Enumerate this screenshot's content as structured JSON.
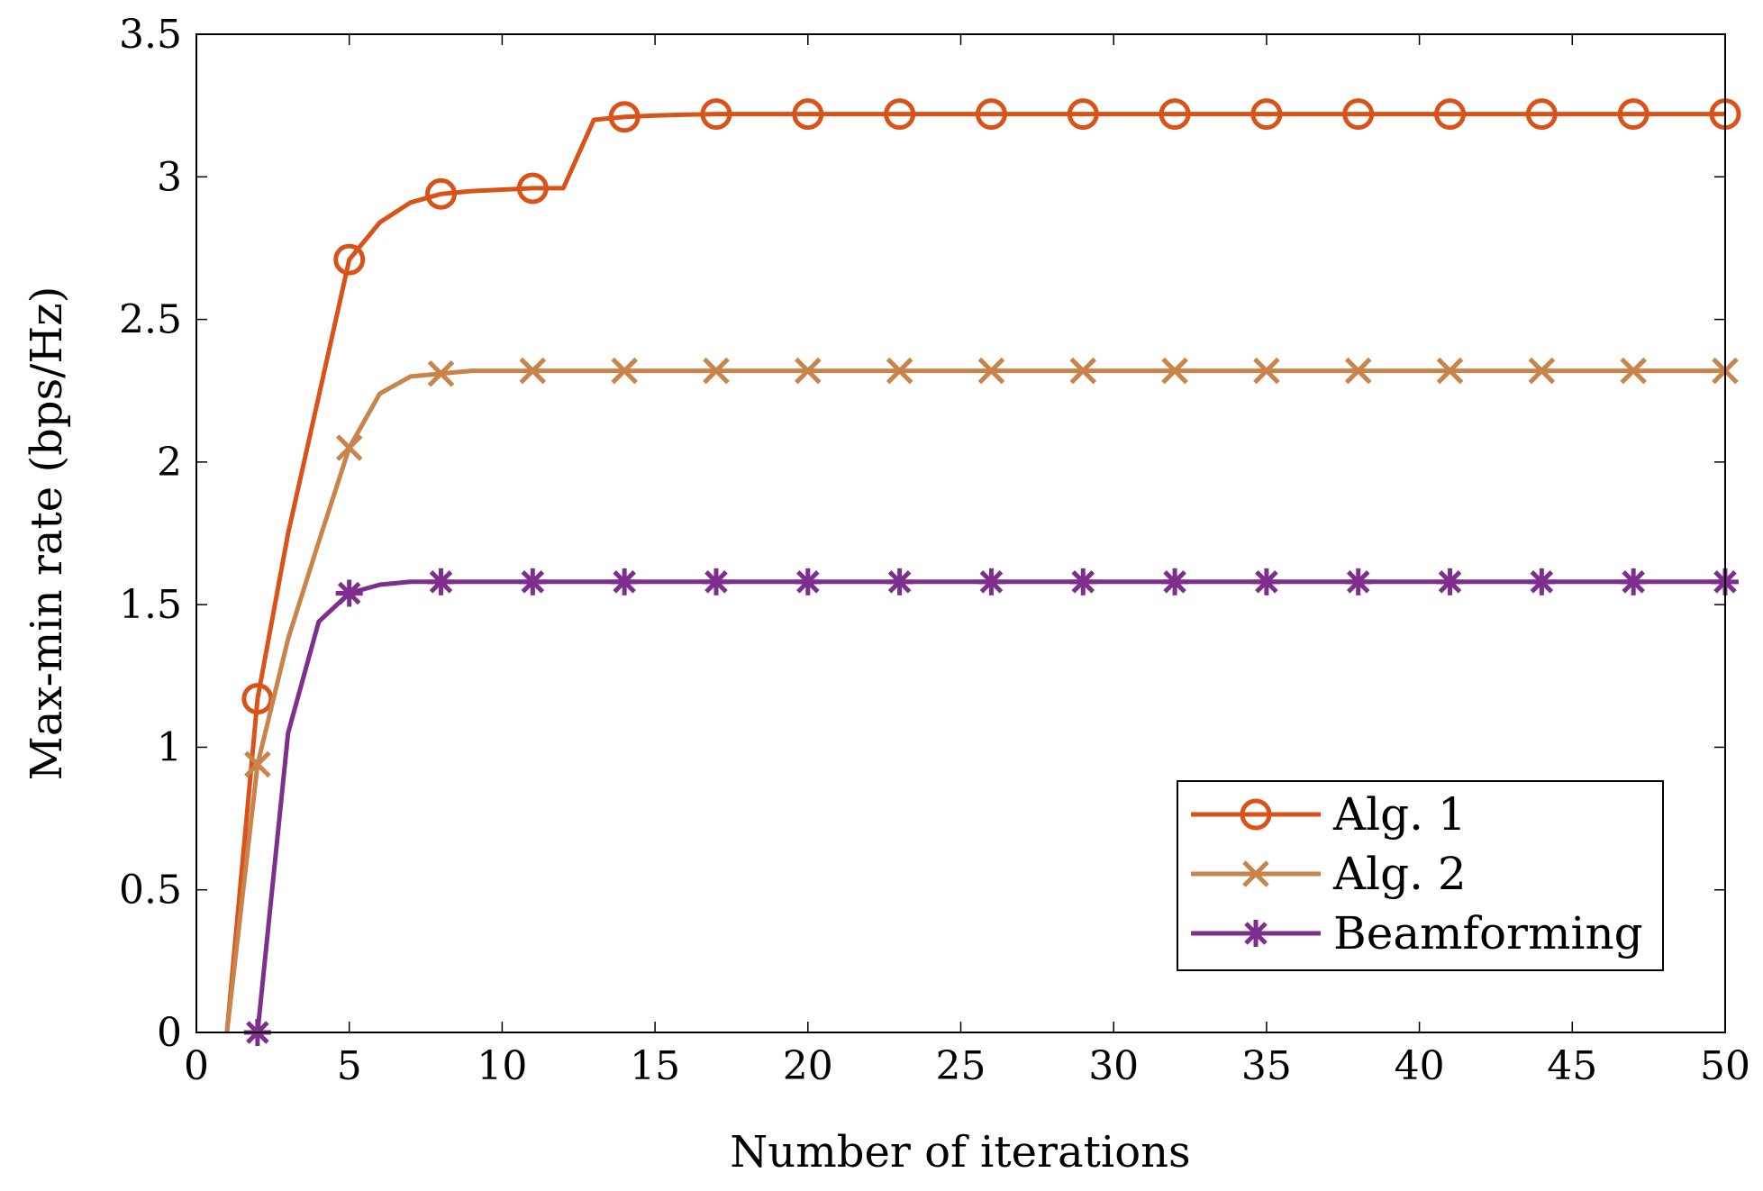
{
  "chart_data": {
    "type": "line",
    "title": "",
    "xlabel": "Number of iterations",
    "ylabel": "Max-min rate (bps/Hz)",
    "xlim": [
      0,
      50
    ],
    "ylim": [
      0,
      3.5
    ],
    "xticks": [
      0,
      5,
      10,
      15,
      20,
      25,
      30,
      35,
      40,
      45,
      50
    ],
    "yticks": [
      0,
      0.5,
      1,
      1.5,
      2,
      2.5,
      3,
      3.5
    ],
    "xtick_labels": [
      "0",
      "5",
      "10",
      "15",
      "20",
      "25",
      "30",
      "35",
      "40",
      "45",
      "50"
    ],
    "ytick_labels": [
      "0",
      "0.5",
      "1",
      "1.5",
      "2",
      "2.5",
      "3",
      "3.5"
    ],
    "grid": false,
    "legend_position": "bottom-right",
    "series": [
      {
        "name": "Alg. 1",
        "color": "#D95319",
        "marker": "circle",
        "x": [
          1,
          2,
          3,
          4,
          5,
          6,
          7,
          8,
          9,
          10,
          11,
          12,
          13,
          14,
          15,
          16,
          17,
          18,
          19,
          20,
          21,
          22,
          23,
          24,
          25,
          26,
          27,
          28,
          29,
          30,
          31,
          32,
          33,
          34,
          35,
          36,
          37,
          38,
          39,
          40,
          41,
          42,
          43,
          44,
          45,
          46,
          47,
          48,
          49,
          50
        ],
        "y": [
          0,
          1.17,
          1.75,
          2.23,
          2.71,
          2.84,
          2.91,
          2.94,
          2.95,
          2.955,
          2.96,
          2.96,
          3.2,
          3.21,
          3.215,
          3.218,
          3.22,
          3.22,
          3.22,
          3.22,
          3.22,
          3.22,
          3.22,
          3.22,
          3.22,
          3.22,
          3.22,
          3.22,
          3.22,
          3.22,
          3.22,
          3.22,
          3.22,
          3.22,
          3.22,
          3.22,
          3.22,
          3.22,
          3.22,
          3.22,
          3.22,
          3.22,
          3.22,
          3.22,
          3.22,
          3.22,
          3.22,
          3.22,
          3.22,
          3.22
        ],
        "marker_x": [
          2,
          5,
          8,
          11,
          14,
          17,
          20,
          23,
          26,
          29,
          32,
          35,
          38,
          41,
          44,
          47,
          50
        ]
      },
      {
        "name": "Alg. 2",
        "color": "#C8844A",
        "marker": "x",
        "x": [
          1,
          2,
          3,
          4,
          5,
          6,
          7,
          8,
          9,
          10,
          11,
          12,
          13,
          14,
          15,
          16,
          17,
          18,
          19,
          20,
          21,
          22,
          23,
          24,
          25,
          26,
          27,
          28,
          29,
          30,
          31,
          32,
          33,
          34,
          35,
          36,
          37,
          38,
          39,
          40,
          41,
          42,
          43,
          44,
          45,
          46,
          47,
          48,
          49,
          50
        ],
        "y": [
          0,
          0.94,
          1.38,
          1.72,
          2.05,
          2.24,
          2.3,
          2.31,
          2.32,
          2.32,
          2.32,
          2.32,
          2.32,
          2.32,
          2.32,
          2.32,
          2.32,
          2.32,
          2.32,
          2.32,
          2.32,
          2.32,
          2.32,
          2.32,
          2.32,
          2.32,
          2.32,
          2.32,
          2.32,
          2.32,
          2.32,
          2.32,
          2.32,
          2.32,
          2.32,
          2.32,
          2.32,
          2.32,
          2.32,
          2.32,
          2.32,
          2.32,
          2.32,
          2.32,
          2.32,
          2.32,
          2.32,
          2.32,
          2.32,
          2.32
        ],
        "marker_x": [
          2,
          5,
          8,
          11,
          14,
          17,
          20,
          23,
          26,
          29,
          32,
          35,
          38,
          41,
          44,
          47,
          50
        ]
      },
      {
        "name": "Beamforming",
        "color": "#7E2F8E",
        "marker": "asterisk",
        "x": [
          2,
          3,
          4,
          5,
          6,
          7,
          8,
          9,
          10,
          11,
          12,
          13,
          14,
          15,
          16,
          17,
          18,
          19,
          20,
          21,
          22,
          23,
          24,
          25,
          26,
          27,
          28,
          29,
          30,
          31,
          32,
          33,
          34,
          35,
          36,
          37,
          38,
          39,
          40,
          41,
          42,
          43,
          44,
          45,
          46,
          47,
          48,
          49,
          50
        ],
        "y": [
          0,
          1.05,
          1.44,
          1.54,
          1.57,
          1.58,
          1.58,
          1.58,
          1.58,
          1.58,
          1.58,
          1.58,
          1.58,
          1.58,
          1.58,
          1.58,
          1.58,
          1.58,
          1.58,
          1.58,
          1.58,
          1.58,
          1.58,
          1.58,
          1.58,
          1.58,
          1.58,
          1.58,
          1.58,
          1.58,
          1.58,
          1.58,
          1.58,
          1.58,
          1.58,
          1.58,
          1.58,
          1.58,
          1.58,
          1.58,
          1.58,
          1.58,
          1.58,
          1.58,
          1.58,
          1.58,
          1.58,
          1.58,
          1.58
        ],
        "marker_x": [
          2,
          5,
          8,
          11,
          14,
          17,
          20,
          23,
          26,
          29,
          32,
          35,
          38,
          41,
          44,
          47,
          50
        ]
      }
    ]
  }
}
